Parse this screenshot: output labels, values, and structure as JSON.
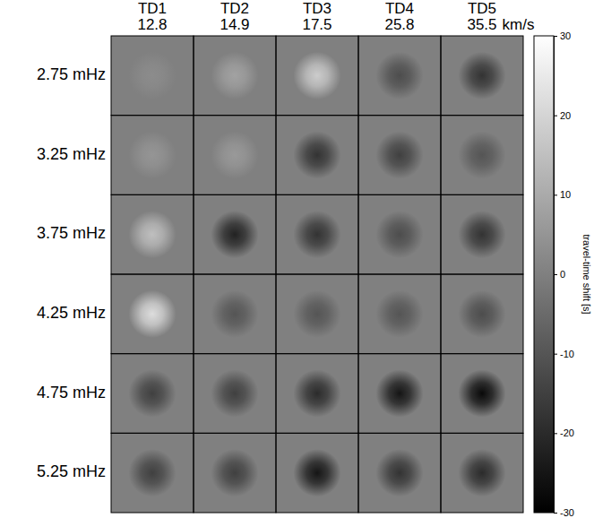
{
  "chart_data": {
    "type": "heatmap",
    "columns": [
      "TD1",
      "TD2",
      "TD3",
      "TD4",
      "TD5"
    ],
    "column_speeds": [
      12.8,
      14.9,
      17.5,
      25.8,
      35.5
    ],
    "speed_unit": "km/s",
    "rows": [
      "2.75 mHz",
      "3.25 mHz",
      "3.75 mHz",
      "4.25 mHz",
      "4.75 mHz",
      "5.25 mHz"
    ],
    "cells": [
      [
        3,
        8,
        18,
        -12,
        -18
      ],
      [
        5,
        6,
        -18,
        -15,
        -10
      ],
      [
        15,
        -22,
        -18,
        -12,
        -18
      ],
      [
        22,
        -10,
        -10,
        -10,
        -12
      ],
      [
        -15,
        -15,
        -20,
        -25,
        -28
      ],
      [
        -15,
        -15,
        -25,
        -18,
        -20
      ]
    ],
    "colorbar": {
      "label": "travel-time shift [s]",
      "lim": [
        -30,
        30
      ],
      "ticks": [
        -30,
        -20,
        -10,
        0,
        10,
        20,
        30
      ]
    }
  }
}
